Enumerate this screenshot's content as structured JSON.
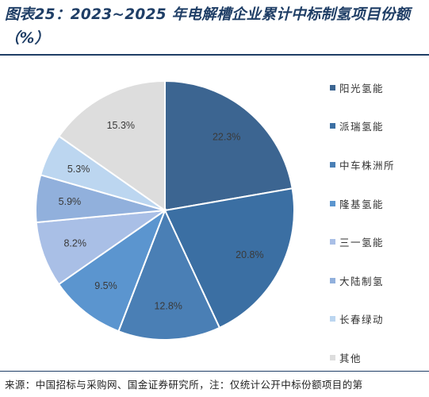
{
  "header": {
    "title": "图表25：2023~2025 年电解槽企业累计中标制氢项目份额（%）"
  },
  "chart_data": {
    "type": "pie",
    "title": "",
    "slices": [
      {
        "label": "阳光氢能",
        "value": 22.3,
        "value_label": "22.3%",
        "color": "#3c6591"
      },
      {
        "label": "派瑞氢能",
        "value": 20.8,
        "value_label": "20.8%",
        "color": "#3b6fa3"
      },
      {
        "label": "中车株洲所",
        "value": 12.8,
        "value_label": "12.8%",
        "color": "#4a7fb5"
      },
      {
        "label": "隆基氢能",
        "value": 9.5,
        "value_label": "9.5%",
        "color": "#5b95cf"
      },
      {
        "label": "三一氢能",
        "value": 8.2,
        "value_label": "8.2%",
        "color": "#a9bfe6"
      },
      {
        "label": "大陆制氢",
        "value": 5.9,
        "value_label": "5.9%",
        "color": "#91b0dc"
      },
      {
        "label": "长春绿动",
        "value": 5.3,
        "value_label": "5.3%",
        "color": "#bcd6f0"
      },
      {
        "label": "其他",
        "value": 15.3,
        "value_label": "15.3%",
        "color": "#dddddd"
      }
    ],
    "legend_position": "right",
    "start_angle": "12 o'clock",
    "direction": "clockwise"
  },
  "footer": {
    "source": "来源：中国招标与采购网、国金证券研究所，注：仅统计公开中标份额项目的第"
  }
}
